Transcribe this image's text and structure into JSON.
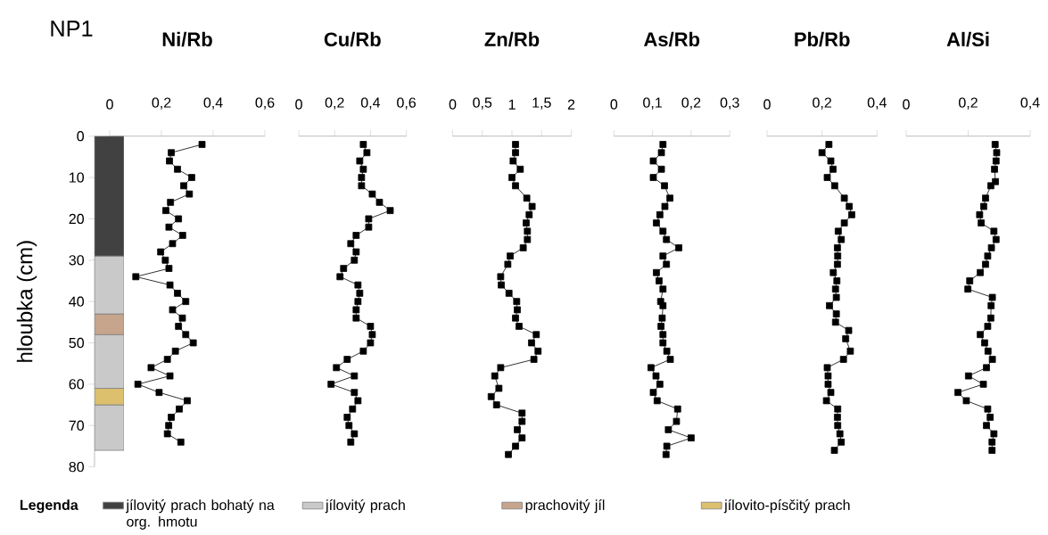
{
  "chart_data": [
    {
      "type": "bar",
      "stacked": true,
      "title": "NP1",
      "ylabel": "hloubka (cm)",
      "categories": [
        null
      ],
      "ylim": [
        80,
        0
      ],
      "yticks": [
        0,
        10,
        20,
        30,
        40,
        50,
        60,
        70,
        80
      ],
      "tick_labels": "y",
      "legend": "bottom",
      "legend_title": "Legenda",
      "series": [
        {
          "name": "jílovitý prach bohatý na org. hmotu",
          "color": "#414141",
          "values": [
            29
          ]
        },
        {
          "name": "jílovitý prach",
          "color": "#c9c9c9",
          "values": [
            14
          ]
        },
        {
          "name": "prachovitý jíl",
          "color": "#c6a58c",
          "values": [
            5
          ]
        },
        {
          "color": "#c9c9c9",
          "values": [
            13
          ]
        },
        {
          "name": "jílovito-písčitý prach",
          "color": "#dcc06e",
          "values": [
            4
          ]
        },
        {
          "color": "#c9c9c9",
          "values": [
            11
          ]
        }
      ]
    },
    {
      "type": "line",
      "title": "Ni/Rb",
      "marker": "square",
      "xlim": [
        0,
        0.6
      ],
      "xticks": [
        0,
        {
          "value": 0.2,
          "label": "0,2"
        },
        {
          "value": 0.4,
          "label": "0,4"
        },
        {
          "value": 0.6,
          "label": "0,6"
        }
      ],
      "ylim": [
        80,
        0
      ],
      "tick_labels": "x",
      "series": [
        {
          "color": "#000000",
          "x": [
            0.357,
            0.238,
            0.231,
            0.262,
            0.317,
            0.286,
            0.308,
            0.235,
            0.217,
            0.266,
            0.229,
            0.282,
            0.243,
            0.197,
            0.215,
            0.229,
            0.101,
            0.233,
            0.262,
            0.294,
            0.243,
            0.281,
            0.266,
            0.294,
            0.323,
            0.254,
            0.223,
            0.16,
            0.233,
            0.109,
            0.191,
            0.3,
            0.269,
            0.238,
            0.228,
            0.223,
            0.275
          ],
          "values": [
            2,
            4,
            6,
            8,
            10,
            12,
            14,
            16,
            18,
            20,
            22,
            24,
            26,
            28,
            30,
            32,
            34,
            36,
            38,
            40,
            42,
            44,
            46,
            48,
            50,
            52,
            54,
            56,
            58,
            60,
            62,
            64,
            66,
            68,
            70,
            72,
            74
          ]
        }
      ]
    },
    {
      "type": "line",
      "title": "Cu/Rb",
      "marker": "square",
      "xlim": [
        0,
        0.6
      ],
      "xticks": [
        0,
        {
          "value": 0.2,
          "label": "0,2"
        },
        {
          "value": 0.4,
          "label": "0,4"
        },
        {
          "value": 0.6,
          "label": "0,6"
        }
      ],
      "ylim": [
        80,
        0
      ],
      "tick_labels": "x",
      "series": [
        {
          "color": "#000000",
          "x": [
            0.36,
            0.38,
            0.34,
            0.36,
            0.35,
            0.35,
            0.41,
            0.45,
            0.51,
            0.39,
            0.39,
            0.32,
            0.29,
            0.32,
            0.31,
            0.25,
            0.23,
            0.33,
            0.34,
            0.33,
            0.32,
            0.32,
            0.4,
            0.41,
            0.4,
            0.36,
            0.27,
            0.21,
            0.31,
            0.18,
            0.31,
            0.33,
            0.3,
            0.27,
            0.28,
            0.31,
            0.29
          ],
          "values": [
            2,
            4,
            6,
            8,
            10,
            12,
            14,
            16,
            18,
            20,
            22,
            24,
            26,
            28,
            30,
            32,
            34,
            36,
            38,
            40,
            42,
            44,
            46,
            48,
            50,
            52,
            54,
            56,
            58,
            60,
            62,
            64,
            66,
            68,
            70,
            72,
            74
          ]
        }
      ]
    },
    {
      "type": "line",
      "title": "Zn/Rb",
      "marker": "square",
      "xlim": [
        0,
        2
      ],
      "xticks": [
        0,
        {
          "value": 0.5,
          "label": "0,5"
        },
        1,
        {
          "value": 1.5,
          "label": "1,5"
        },
        2
      ],
      "ylim": [
        80,
        0
      ],
      "tick_labels": "x",
      "series": [
        {
          "color": "#000000",
          "x": [
            1.06,
            1.06,
            1.02,
            1.14,
            1.0,
            1.06,
            1.25,
            1.34,
            1.29,
            1.24,
            1.26,
            1.26,
            1.19,
            0.97,
            0.93,
            0.81,
            0.82,
            0.95,
            1.08,
            1.09,
            1.06,
            1.12,
            1.41,
            1.33,
            1.44,
            1.37,
            0.81,
            0.71,
            0.78,
            0.65,
            0.74,
            1.17,
            1.17,
            1.09,
            1.17,
            1.06,
            0.94
          ],
          "values": [
            2,
            4,
            6,
            8,
            10,
            12,
            15,
            17,
            19,
            21,
            23,
            25,
            27,
            29,
            31,
            34,
            36,
            38,
            40,
            42,
            44,
            46,
            48,
            50,
            52,
            54,
            56,
            58,
            61,
            63,
            65,
            67,
            69,
            71,
            73,
            75,
            77
          ]
        }
      ]
    },
    {
      "type": "line",
      "title": "As/Rb",
      "marker": "square",
      "xlim": [
        0,
        0.3
      ],
      "xticks": [
        0,
        {
          "value": 0.1,
          "label": "0,1"
        },
        {
          "value": 0.2,
          "label": "0,2"
        },
        {
          "value": 0.3,
          "label": "0,3"
        }
      ],
      "ylim": [
        80,
        0
      ],
      "tick_labels": "x",
      "series": [
        {
          "color": "#000000",
          "x": [
            0.127,
            0.123,
            0.102,
            0.123,
            0.102,
            0.131,
            0.145,
            0.132,
            0.119,
            0.11,
            0.127,
            0.136,
            0.168,
            0.127,
            0.136,
            0.11,
            0.117,
            0.127,
            0.121,
            0.127,
            0.125,
            0.122,
            0.127,
            0.127,
            0.137,
            0.146,
            0.096,
            0.109,
            0.119,
            0.102,
            0.112,
            0.165,
            0.162,
            0.141,
            0.2,
            0.137,
            0.135
          ],
          "values": [
            2,
            4,
            6,
            8,
            10,
            12,
            15,
            17,
            19,
            21,
            23,
            25,
            27,
            29,
            31,
            33,
            35,
            37,
            40,
            41,
            44,
            46,
            48,
            50,
            52,
            54,
            56,
            58,
            60,
            62,
            64,
            66,
            69,
            71,
            73,
            75,
            77
          ]
        }
      ]
    },
    {
      "type": "line",
      "title": "Pb/Rb",
      "marker": "square",
      "xlim": [
        0,
        0.4
      ],
      "xticks": [
        0,
        {
          "value": 0.2,
          "label": "0,2"
        },
        {
          "value": 0.4,
          "label": "0,4"
        }
      ],
      "ylim": [
        80,
        0
      ],
      "tick_labels": "x",
      "series": [
        {
          "color": "#000000",
          "x": [
            0.225,
            0.2,
            0.232,
            0.24,
            0.219,
            0.246,
            0.281,
            0.299,
            0.308,
            0.281,
            0.259,
            0.27,
            0.256,
            0.257,
            0.256,
            0.241,
            0.254,
            0.249,
            0.252,
            0.227,
            0.252,
            0.249,
            0.297,
            0.286,
            0.303,
            0.278,
            0.219,
            0.222,
            0.222,
            0.232,
            0.216,
            0.257,
            0.256,
            0.257,
            0.265,
            0.27,
            0.245
          ],
          "values": [
            2,
            4,
            6,
            8,
            10,
            12,
            15,
            17,
            19,
            21,
            23,
            25,
            27,
            29,
            31,
            33,
            35,
            37,
            39,
            41,
            43,
            45,
            47,
            49,
            52,
            54,
            56,
            58,
            60,
            62,
            64,
            66,
            68,
            70,
            72,
            74,
            76
          ]
        }
      ]
    },
    {
      "type": "line",
      "title": "Al/Si",
      "marker": "square",
      "xlim": [
        0,
        0.4
      ],
      "xticks": [
        0,
        {
          "value": 0.2,
          "label": "0,2"
        },
        {
          "value": 0.4,
          "label": "0,4"
        }
      ],
      "ylim": [
        80,
        0
      ],
      "tick_labels": "x",
      "series": [
        {
          "color": "#000000",
          "x": [
            0.287,
            0.292,
            0.29,
            0.285,
            0.288,
            0.273,
            0.256,
            0.25,
            0.237,
            0.242,
            0.283,
            0.29,
            0.275,
            0.263,
            0.256,
            0.239,
            0.205,
            0.199,
            0.278,
            0.274,
            0.273,
            0.263,
            0.239,
            0.253,
            0.264,
            0.278,
            0.259,
            0.201,
            0.249,
            0.167,
            0.194,
            0.263,
            0.271,
            0.259,
            0.283,
            0.277,
            0.277
          ],
          "values": [
            2,
            4,
            6,
            8,
            11,
            12,
            15,
            17,
            19,
            21,
            23,
            25,
            27,
            29,
            31,
            33,
            35,
            37,
            39,
            41,
            44,
            46,
            48,
            50,
            52,
            54,
            56,
            58,
            60,
            62,
            64,
            66,
            68,
            70,
            72,
            74,
            76
          ]
        }
      ]
    }
  ]
}
